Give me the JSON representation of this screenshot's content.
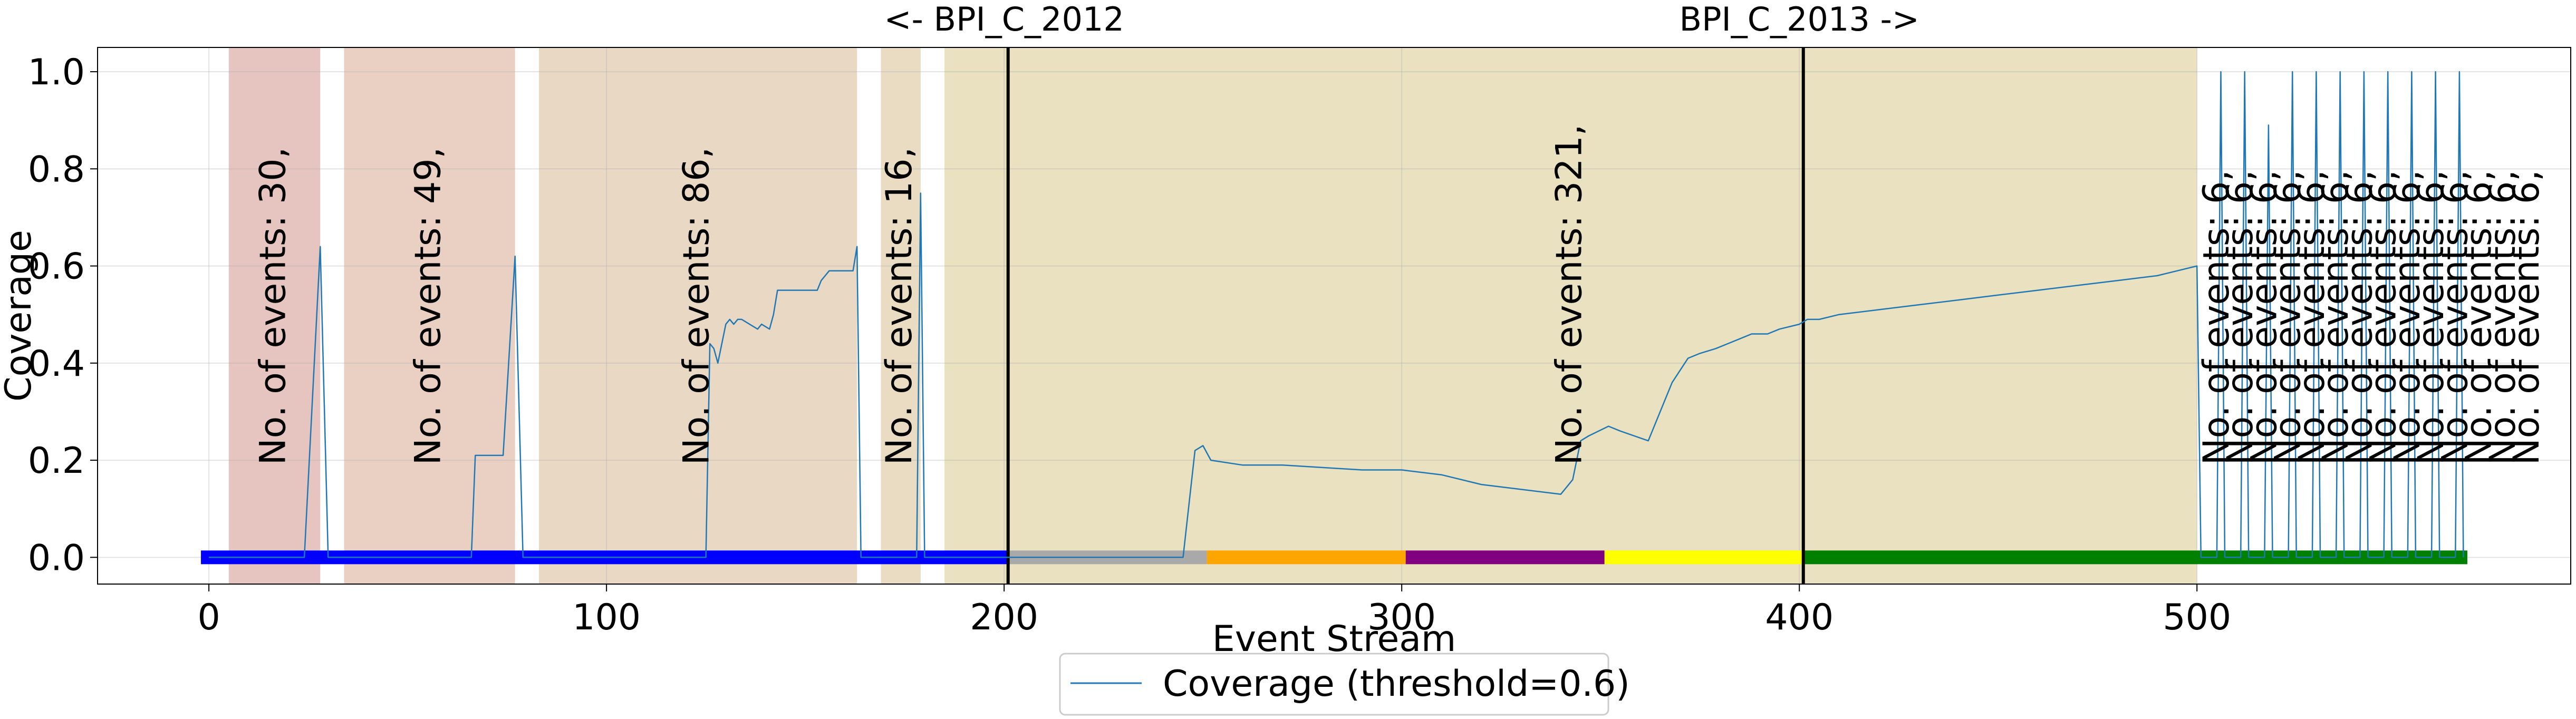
{
  "chart_data": {
    "type": "line",
    "xlabel": "Event Stream",
    "ylabel": "Coverage",
    "xlim": [
      -28,
      594
    ],
    "ylim": [
      -0.055,
      1.05
    ],
    "grid": true,
    "legend_placement": "bottom-center",
    "xticks": [
      0,
      100,
      200,
      300,
      400,
      500
    ],
    "xtick_labels": [
      "0",
      "100",
      "200",
      "300",
      "400",
      "500"
    ],
    "yticks": [
      0.0,
      0.2,
      0.4,
      0.6,
      0.8,
      1.0
    ],
    "ytick_labels": [
      "0.0",
      "0.2",
      "0.4",
      "0.6",
      "0.8",
      "1.0"
    ],
    "top_labels": [
      {
        "x": 200,
        "text": "<- BPI_C_2012"
      },
      {
        "x": 400,
        "text": "BPI_C_2013 ->"
      }
    ],
    "vlines": [
      201,
      401
    ],
    "shaded_regions": [
      {
        "x0": 5,
        "x1": 28,
        "color": "#e6c4c0",
        "label": "No. of events: 30,"
      },
      {
        "x0": 34,
        "x1": 77,
        "color": "#e9d0c3",
        "label": "No. of events: 49,"
      },
      {
        "x0": 83,
        "x1": 163,
        "color": "#e9d8c4",
        "label": "No. of events: 86,"
      },
      {
        "x0": 169,
        "x1": 179,
        "color": "#e9dcc2",
        "label": "No. of events: 16,"
      },
      {
        "x0": 185,
        "x1": 500,
        "color": "#e9e1c0",
        "label": "No. of events: 321,"
      }
    ],
    "small_window_labels": {
      "x": [
        505,
        511,
        517,
        523,
        529,
        535,
        541,
        547,
        553,
        559,
        565,
        571,
        577,
        583
      ],
      "text": "No. of events: 6,"
    },
    "stream_bar": [
      {
        "x0": -2,
        "x1": 201,
        "color": "#0000ff"
      },
      {
        "x0": 201,
        "x1": 251,
        "color": "#a9a9a9"
      },
      {
        "x0": 251,
        "x1": 301,
        "color": "#ffa500"
      },
      {
        "x0": 301,
        "x1": 351,
        "color": "#800080"
      },
      {
        "x0": 351,
        "x1": 401,
        "color": "#ffff00"
      },
      {
        "x0": 401,
        "x1": 568,
        "color": "#008000"
      }
    ],
    "series": [
      {
        "name": "Coverage (threshold=0.6)",
        "color": "#1f77b4",
        "x": [
          0,
          24,
          28,
          30,
          66,
          67,
          74,
          77,
          79,
          125,
          126,
          127,
          128,
          130,
          131,
          132,
          133,
          134,
          138,
          139,
          141,
          142,
          143,
          148,
          153,
          154,
          156,
          157,
          158,
          162,
          163,
          164,
          178,
          179,
          180,
          245,
          248,
          250,
          252,
          260,
          270,
          280,
          290,
          300,
          310,
          320,
          330,
          340,
          341,
          343,
          345,
          347,
          352,
          355,
          362,
          368,
          372,
          375,
          379,
          382,
          385,
          388,
          392,
          395,
          400,
          402,
          405,
          410,
          420,
          430,
          440,
          450,
          460,
          470,
          480,
          490,
          495,
          500,
          501,
          505,
          506,
          507,
          511,
          512,
          513,
          517,
          518,
          519,
          523,
          524,
          525,
          529,
          530,
          531,
          535,
          536,
          537,
          541,
          542,
          543,
          547,
          548,
          549,
          553,
          554,
          555,
          559,
          560,
          561,
          565,
          566,
          567
        ],
        "y": [
          0,
          0,
          0.64,
          0,
          0,
          0.21,
          0.21,
          0.62,
          0,
          0,
          0.44,
          0.43,
          0.4,
          0.48,
          0.49,
          0.48,
          0.49,
          0.49,
          0.47,
          0.48,
          0.47,
          0.5,
          0.55,
          0.55,
          0.55,
          0.57,
          0.59,
          0.59,
          0.59,
          0.59,
          0.64,
          0,
          0,
          0.75,
          0,
          0,
          0.22,
          0.23,
          0.2,
          0.19,
          0.19,
          0.185,
          0.18,
          0.18,
          0.17,
          0.15,
          0.14,
          0.13,
          0.14,
          0.16,
          0.24,
          0.25,
          0.27,
          0.26,
          0.24,
          0.36,
          0.41,
          0.42,
          0.43,
          0.44,
          0.45,
          0.46,
          0.46,
          0.47,
          0.48,
          0.49,
          0.49,
          0.5,
          0.51,
          0.52,
          0.53,
          0.54,
          0.55,
          0.56,
          0.57,
          0.58,
          0.59,
          0.6,
          0,
          0,
          1.0,
          0,
          0,
          1.0,
          0,
          0,
          0.89,
          0,
          0,
          1.0,
          0,
          0,
          1.0,
          0,
          0,
          1.0,
          0,
          0,
          1.0,
          0,
          0,
          1.0,
          0,
          0,
          1.0,
          0,
          0,
          1.0,
          0,
          0,
          1.0,
          0
        ]
      }
    ]
  }
}
